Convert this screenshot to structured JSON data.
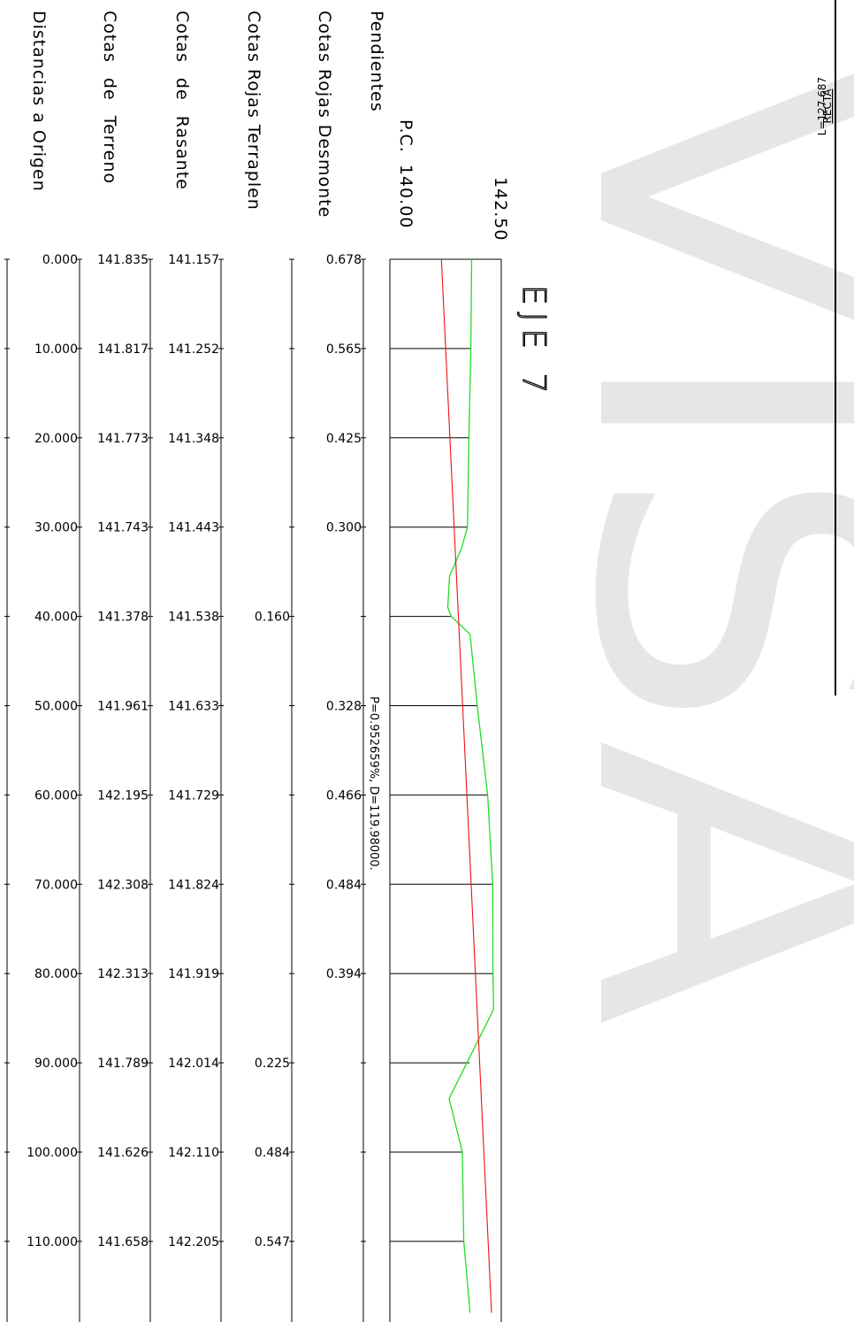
{
  "header": {
    "rows": [
      "Distancias a Origen",
      "Cotas de Terreno",
      "Cotas de Rasante",
      "Cotas Rojas Terraplen",
      "Cotas Rojas Desmonte",
      "Pendientes"
    ],
    "plane_reference": "P.C. 140.00",
    "top_elevation": "142.50"
  },
  "title": "EJE 7",
  "alignment": {
    "type": "RECTA",
    "length": "L=127.687"
  },
  "slope_label": "P=0.952659%, D=119.98000.",
  "watermark": "VISA",
  "colors": {
    "ground_line": "#22dd22",
    "grade_line": "#ee1111",
    "ink": "#000000",
    "watermark": "#e6e6e6"
  },
  "stations": [
    {
      "distance": "0.000",
      "terreno": "141.835",
      "rasante": "141.157",
      "terraplen": "",
      "desmonte": "0.678"
    },
    {
      "distance": "10.000",
      "terreno": "141.817",
      "rasante": "141.252",
      "terraplen": "",
      "desmonte": "0.565"
    },
    {
      "distance": "20.000",
      "terreno": "141.773",
      "rasante": "141.348",
      "terraplen": "",
      "desmonte": "0.425"
    },
    {
      "distance": "30.000",
      "terreno": "141.743",
      "rasante": "141.443",
      "terraplen": "",
      "desmonte": "0.300"
    },
    {
      "distance": "40.000",
      "terreno": "141.378",
      "rasante": "141.538",
      "terraplen": "0.160",
      "desmonte": ""
    },
    {
      "distance": "50.000",
      "terreno": "141.961",
      "rasante": "141.633",
      "terraplen": "",
      "desmonte": "0.328"
    },
    {
      "distance": "60.000",
      "terreno": "142.195",
      "rasante": "141.729",
      "terraplen": "",
      "desmonte": "0.466"
    },
    {
      "distance": "70.000",
      "terreno": "142.308",
      "rasante": "141.824",
      "terraplen": "",
      "desmonte": "0.484"
    },
    {
      "distance": "80.000",
      "terreno": "142.313",
      "rasante": "141.919",
      "terraplen": "",
      "desmonte": "0.394"
    },
    {
      "distance": "90.000",
      "terreno": "141.789",
      "rasante": "142.014",
      "terraplen": "0.225",
      "desmonte": ""
    },
    {
      "distance": "100.000",
      "terreno": "141.626",
      "rasante": "142.110",
      "terraplen": "0.484",
      "desmonte": ""
    },
    {
      "distance": "110.000",
      "terreno": "141.658",
      "rasante": "142.205",
      "terraplen": "0.547",
      "desmonte": ""
    }
  ],
  "ground_profile": [
    {
      "d": 0,
      "z": 141.835
    },
    {
      "d": 10,
      "z": 141.817
    },
    {
      "d": 20,
      "z": 141.773
    },
    {
      "d": 30,
      "z": 141.743
    },
    {
      "d": 32.5,
      "z": 141.6
    },
    {
      "d": 35.5,
      "z": 141.34
    },
    {
      "d": 39,
      "z": 141.3
    },
    {
      "d": 40,
      "z": 141.378
    },
    {
      "d": 42,
      "z": 141.8
    },
    {
      "d": 50,
      "z": 141.961
    },
    {
      "d": 60,
      "z": 142.195
    },
    {
      "d": 70,
      "z": 142.308
    },
    {
      "d": 80,
      "z": 142.313
    },
    {
      "d": 84,
      "z": 142.33
    },
    {
      "d": 94,
      "z": 141.33
    },
    {
      "d": 100,
      "z": 141.626
    },
    {
      "d": 110,
      "z": 141.658
    },
    {
      "d": 118,
      "z": 141.8
    }
  ],
  "grade_profile": [
    {
      "d": 0,
      "z": 141.157
    },
    {
      "d": 118,
      "z": 142.281
    }
  ]
}
